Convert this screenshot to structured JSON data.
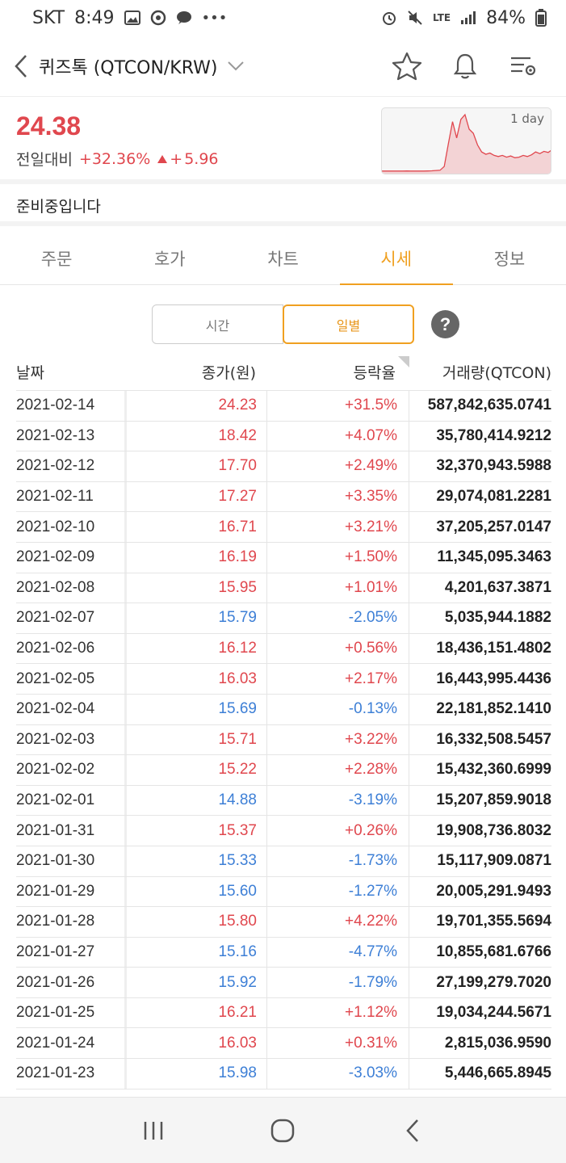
{
  "status_bar": {
    "carrier": "SKT",
    "time": "8:49",
    "network": "LTE",
    "battery": "84%"
  },
  "header": {
    "title": "퀴즈톡 (QTCON/KRW)"
  },
  "price": {
    "current": "24.38",
    "change_label": "전일대비",
    "change_pct": "+32.36%",
    "change_abs": "5.96",
    "chart_label": "1 day",
    "mini_chart_values": [
      3,
      3,
      3,
      3,
      3,
      3,
      3.2,
      3,
      3.1,
      3,
      3,
      3.2,
      3.5,
      4,
      4.5,
      11,
      50,
      88,
      60,
      92,
      100,
      75,
      68,
      48,
      36,
      32,
      34,
      30,
      28,
      30,
      27,
      29,
      26,
      27,
      30,
      28,
      31,
      36,
      33,
      37,
      35,
      40
    ]
  },
  "notice": "준비중입니다",
  "tabs": [
    {
      "label": "주문"
    },
    {
      "label": "호가"
    },
    {
      "label": "차트"
    },
    {
      "label": "시세"
    },
    {
      "label": "정보"
    }
  ],
  "segment": {
    "time_label": "시간",
    "daily_label": "일별",
    "help_label": "?"
  },
  "table": {
    "headers": {
      "date": "날짜",
      "close": "종가(원)",
      "rate": "등락율",
      "volume": "거래량(QTCON)"
    },
    "rows": [
      {
        "date": "2021-02-14",
        "close": "24.23",
        "rate": "+31.5%",
        "volume": "587,842,635.0741"
      },
      {
        "date": "2021-02-13",
        "close": "18.42",
        "rate": "+4.07%",
        "volume": "35,780,414.9212"
      },
      {
        "date": "2021-02-12",
        "close": "17.70",
        "rate": "+2.49%",
        "volume": "32,370,943.5988"
      },
      {
        "date": "2021-02-11",
        "close": "17.27",
        "rate": "+3.35%",
        "volume": "29,074,081.2281"
      },
      {
        "date": "2021-02-10",
        "close": "16.71",
        "rate": "+3.21%",
        "volume": "37,205,257.0147"
      },
      {
        "date": "2021-02-09",
        "close": "16.19",
        "rate": "+1.50%",
        "volume": "11,345,095.3463"
      },
      {
        "date": "2021-02-08",
        "close": "15.95",
        "rate": "+1.01%",
        "volume": "4,201,637.3871"
      },
      {
        "date": "2021-02-07",
        "close": "15.79",
        "rate": "-2.05%",
        "volume": "5,035,944.1882"
      },
      {
        "date": "2021-02-06",
        "close": "16.12",
        "rate": "+0.56%",
        "volume": "18,436,151.4802"
      },
      {
        "date": "2021-02-05",
        "close": "16.03",
        "rate": "+2.17%",
        "volume": "16,443,995.4436"
      },
      {
        "date": "2021-02-04",
        "close": "15.69",
        "rate": "-0.13%",
        "volume": "22,181,852.1410"
      },
      {
        "date": "2021-02-03",
        "close": "15.71",
        "rate": "+3.22%",
        "volume": "16,332,508.5457"
      },
      {
        "date": "2021-02-02",
        "close": "15.22",
        "rate": "+2.28%",
        "volume": "15,432,360.6999"
      },
      {
        "date": "2021-02-01",
        "close": "14.88",
        "rate": "-3.19%",
        "volume": "15,207,859.9018"
      },
      {
        "date": "2021-01-31",
        "close": "15.37",
        "rate": "+0.26%",
        "volume": "19,908,736.8032"
      },
      {
        "date": "2021-01-30",
        "close": "15.33",
        "rate": "-1.73%",
        "volume": "15,117,909.0871"
      },
      {
        "date": "2021-01-29",
        "close": "15.60",
        "rate": "-1.27%",
        "volume": "20,005,291.9493"
      },
      {
        "date": "2021-01-28",
        "close": "15.80",
        "rate": "+4.22%",
        "volume": "19,701,355.5694"
      },
      {
        "date": "2021-01-27",
        "close": "15.16",
        "rate": "-4.77%",
        "volume": "10,855,681.6766"
      },
      {
        "date": "2021-01-26",
        "close": "15.92",
        "rate": "-1.79%",
        "volume": "27,199,279.7020"
      },
      {
        "date": "2021-01-25",
        "close": "16.21",
        "rate": "+1.12%",
        "volume": "19,034,244.5671"
      },
      {
        "date": "2021-01-24",
        "close": "16.03",
        "rate": "+0.31%",
        "volume": "2,815,036.9590"
      },
      {
        "date": "2021-01-23",
        "close": "15.98",
        "rate": "-3.03%",
        "volume": "5,446,665.8945"
      }
    ]
  },
  "colors": {
    "up": "#e0474e",
    "down": "#3d7fd6",
    "accent": "#f0a020"
  }
}
